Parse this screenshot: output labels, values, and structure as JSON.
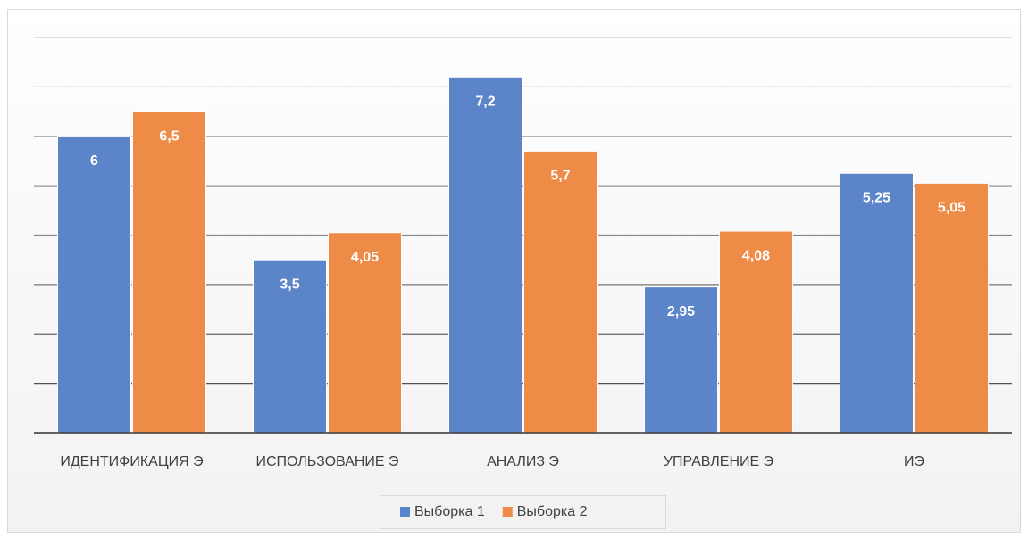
{
  "chart_data": {
    "type": "bar",
    "categories": [
      "ИДЕНТИФИКАЦИЯ Э",
      "ИСПОЛЬЗОВАНИЕ Э",
      "АНАЛИЗ Э",
      "УПРАВЛЕНИЕ Э",
      "ИЭ"
    ],
    "series": [
      {
        "name": "Выборка 1",
        "color": "#5b84c9",
        "values": [
          6,
          3.5,
          7.2,
          2.95,
          5.25
        ],
        "value_labels": [
          "6",
          "3,5",
          "7,2",
          "2,95",
          "5,25"
        ]
      },
      {
        "name": "Выборка 2",
        "color": "#ed8b47",
        "values": [
          6.5,
          4.05,
          5.7,
          4.08,
          5.05
        ],
        "value_labels": [
          "6,5",
          "4,05",
          "5,7",
          "4,08",
          "5,05"
        ]
      }
    ],
    "ylim": [
      0,
      8
    ],
    "yticks": [
      0,
      1,
      2,
      3,
      4,
      5,
      6,
      7,
      8
    ],
    "grid": true,
    "legend": "bottom"
  }
}
